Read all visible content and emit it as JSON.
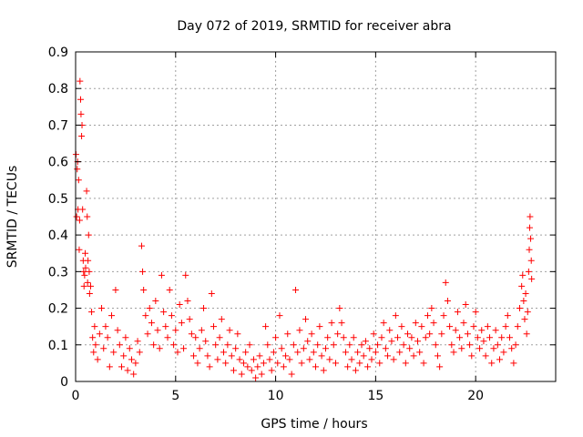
{
  "chart_data": {
    "type": "scatter",
    "title": "Day 072 of 2019, SRMTID for receiver abra",
    "xlabel": "GPS time / hours",
    "ylabel": "SRMTID / TECUs",
    "xlim": [
      0,
      24
    ],
    "ylim": [
      0,
      0.9
    ],
    "x_ticks": [
      0,
      5,
      10,
      15,
      20
    ],
    "x_tick_labels": [
      "0",
      "5",
      "10",
      "15",
      "20"
    ],
    "y_ticks": [
      0,
      0.1,
      0.2,
      0.3,
      0.4,
      0.5,
      0.6,
      0.7,
      0.8,
      0.9
    ],
    "y_tick_labels": [
      "0",
      "0.1",
      "0.2",
      "0.3",
      "0.4",
      "0.5",
      "0.6",
      "0.7",
      "0.8",
      "0.9"
    ],
    "grid": true,
    "marker": "+",
    "color": "#ff0000",
    "series": [
      {
        "name": "SRMTID",
        "points": [
          [
            0.02,
            0.62
          ],
          [
            0.05,
            0.45
          ],
          [
            0.08,
            0.58
          ],
          [
            0.1,
            0.6
          ],
          [
            0.12,
            0.47
          ],
          [
            0.15,
            0.55
          ],
          [
            0.18,
            0.36
          ],
          [
            0.2,
            0.44
          ],
          [
            0.22,
            0.82
          ],
          [
            0.25,
            0.77
          ],
          [
            0.27,
            0.73
          ],
          [
            0.3,
            0.67
          ],
          [
            0.32,
            0.7
          ],
          [
            0.35,
            0.47
          ],
          [
            0.38,
            0.33
          ],
          [
            0.4,
            0.3
          ],
          [
            0.42,
            0.26
          ],
          [
            0.45,
            0.29
          ],
          [
            0.48,
            0.35
          ],
          [
            0.5,
            0.31
          ],
          [
            0.55,
            0.52
          ],
          [
            0.58,
            0.45
          ],
          [
            0.6,
            0.27
          ],
          [
            0.62,
            0.33
          ],
          [
            0.65,
            0.4
          ],
          [
            0.68,
            0.3
          ],
          [
            0.7,
            0.24
          ],
          [
            0.75,
            0.26
          ],
          [
            0.8,
            0.19
          ],
          [
            0.85,
            0.12
          ],
          [
            0.9,
            0.08
          ],
          [
            0.95,
            0.15
          ],
          [
            1.0,
            0.1
          ],
          [
            1.1,
            0.06
          ],
          [
            1.2,
            0.13
          ],
          [
            1.3,
            0.2
          ],
          [
            1.4,
            0.09
          ],
          [
            1.5,
            0.15
          ],
          [
            1.6,
            0.12
          ],
          [
            1.7,
            0.04
          ],
          [
            1.8,
            0.18
          ],
          [
            1.9,
            0.08
          ],
          [
            2.0,
            0.25
          ],
          [
            2.1,
            0.14
          ],
          [
            2.2,
            0.1
          ],
          [
            2.3,
            0.04
          ],
          [
            2.4,
            0.07
          ],
          [
            2.5,
            0.12
          ],
          [
            2.6,
            0.03
          ],
          [
            2.7,
            0.09
          ],
          [
            2.8,
            0.06
          ],
          [
            2.9,
            0.02
          ],
          [
            3.0,
            0.05
          ],
          [
            3.1,
            0.11
          ],
          [
            3.2,
            0.08
          ],
          [
            3.3,
            0.37
          ],
          [
            3.35,
            0.3
          ],
          [
            3.4,
            0.25
          ],
          [
            3.5,
            0.18
          ],
          [
            3.6,
            0.13
          ],
          [
            3.7,
            0.2
          ],
          [
            3.8,
            0.16
          ],
          [
            3.9,
            0.1
          ],
          [
            4.0,
            0.22
          ],
          [
            4.1,
            0.14
          ],
          [
            4.2,
            0.09
          ],
          [
            4.3,
            0.29
          ],
          [
            4.4,
            0.19
          ],
          [
            4.5,
            0.15
          ],
          [
            4.6,
            0.12
          ],
          [
            4.7,
            0.25
          ],
          [
            4.8,
            0.18
          ],
          [
            4.9,
            0.1
          ],
          [
            5.0,
            0.14
          ],
          [
            5.1,
            0.08
          ],
          [
            5.2,
            0.21
          ],
          [
            5.3,
            0.16
          ],
          [
            5.4,
            0.09
          ],
          [
            5.5,
            0.29
          ],
          [
            5.6,
            0.22
          ],
          [
            5.7,
            0.17
          ],
          [
            5.8,
            0.13
          ],
          [
            5.9,
            0.07
          ],
          [
            6.0,
            0.12
          ],
          [
            6.1,
            0.05
          ],
          [
            6.2,
            0.09
          ],
          [
            6.3,
            0.14
          ],
          [
            6.4,
            0.2
          ],
          [
            6.5,
            0.11
          ],
          [
            6.6,
            0.07
          ],
          [
            6.7,
            0.04
          ],
          [
            6.8,
            0.24
          ],
          [
            6.9,
            0.15
          ],
          [
            7.0,
            0.1
          ],
          [
            7.1,
            0.06
          ],
          [
            7.2,
            0.12
          ],
          [
            7.3,
            0.17
          ],
          [
            7.4,
            0.08
          ],
          [
            7.5,
            0.05
          ],
          [
            7.6,
            0.1
          ],
          [
            7.7,
            0.14
          ],
          [
            7.8,
            0.07
          ],
          [
            7.9,
            0.03
          ],
          [
            8.0,
            0.09
          ],
          [
            8.1,
            0.13
          ],
          [
            8.2,
            0.06
          ],
          [
            8.3,
            0.02
          ],
          [
            8.4,
            0.05
          ],
          [
            8.5,
            0.08
          ],
          [
            8.6,
            0.04
          ],
          [
            8.7,
            0.1
          ],
          [
            8.8,
            0.03
          ],
          [
            8.9,
            0.06
          ],
          [
            9.0,
            0.01
          ],
          [
            9.1,
            0.04
          ],
          [
            9.2,
            0.07
          ],
          [
            9.3,
            0.02
          ],
          [
            9.4,
            0.05
          ],
          [
            9.5,
            0.15
          ],
          [
            9.6,
            0.1
          ],
          [
            9.7,
            0.06
          ],
          [
            9.8,
            0.03
          ],
          [
            9.9,
            0.08
          ],
          [
            10.0,
            0.12
          ],
          [
            10.1,
            0.05
          ],
          [
            10.2,
            0.18
          ],
          [
            10.3,
            0.09
          ],
          [
            10.4,
            0.04
          ],
          [
            10.5,
            0.07
          ],
          [
            10.6,
            0.13
          ],
          [
            10.7,
            0.06
          ],
          [
            10.8,
            0.02
          ],
          [
            10.9,
            0.1
          ],
          [
            11.0,
            0.25
          ],
          [
            11.1,
            0.08
          ],
          [
            11.2,
            0.14
          ],
          [
            11.3,
            0.05
          ],
          [
            11.4,
            0.09
          ],
          [
            11.5,
            0.17
          ],
          [
            11.6,
            0.11
          ],
          [
            11.7,
            0.06
          ],
          [
            11.8,
            0.13
          ],
          [
            11.9,
            0.08
          ],
          [
            12.0,
            0.04
          ],
          [
            12.1,
            0.1
          ],
          [
            12.2,
            0.15
          ],
          [
            12.3,
            0.07
          ],
          [
            12.4,
            0.03
          ],
          [
            12.5,
            0.09
          ],
          [
            12.6,
            0.12
          ],
          [
            12.7,
            0.06
          ],
          [
            12.8,
            0.16
          ],
          [
            12.9,
            0.1
          ],
          [
            13.0,
            0.05
          ],
          [
            13.1,
            0.13
          ],
          [
            13.2,
            0.2
          ],
          [
            13.3,
            0.16
          ],
          [
            13.4,
            0.12
          ],
          [
            13.5,
            0.08
          ],
          [
            13.6,
            0.04
          ],
          [
            13.7,
            0.1
          ],
          [
            13.8,
            0.06
          ],
          [
            13.9,
            0.12
          ],
          [
            14.0,
            0.03
          ],
          [
            14.1,
            0.08
          ],
          [
            14.2,
            0.05
          ],
          [
            14.3,
            0.1
          ],
          [
            14.4,
            0.07
          ],
          [
            14.5,
            0.11
          ],
          [
            14.6,
            0.04
          ],
          [
            14.7,
            0.09
          ],
          [
            14.8,
            0.06
          ],
          [
            14.9,
            0.13
          ],
          [
            15.0,
            0.08
          ],
          [
            15.1,
            0.1
          ],
          [
            15.2,
            0.05
          ],
          [
            15.3,
            0.12
          ],
          [
            15.4,
            0.16
          ],
          [
            15.5,
            0.09
          ],
          [
            15.6,
            0.07
          ],
          [
            15.7,
            0.14
          ],
          [
            15.8,
            0.11
          ],
          [
            15.9,
            0.06
          ],
          [
            16.0,
            0.18
          ],
          [
            16.1,
            0.12
          ],
          [
            16.2,
            0.08
          ],
          [
            16.3,
            0.15
          ],
          [
            16.4,
            0.1
          ],
          [
            16.5,
            0.05
          ],
          [
            16.6,
            0.13
          ],
          [
            16.7,
            0.09
          ],
          [
            16.8,
            0.12
          ],
          [
            16.9,
            0.07
          ],
          [
            17.0,
            0.16
          ],
          [
            17.1,
            0.11
          ],
          [
            17.2,
            0.08
          ],
          [
            17.3,
            0.15
          ],
          [
            17.4,
            0.05
          ],
          [
            17.5,
            0.12
          ],
          [
            17.6,
            0.18
          ],
          [
            17.7,
            0.13
          ],
          [
            17.8,
            0.2
          ],
          [
            17.9,
            0.16
          ],
          [
            18.0,
            0.1
          ],
          [
            18.1,
            0.07
          ],
          [
            18.2,
            0.04
          ],
          [
            18.3,
            0.13
          ],
          [
            18.4,
            0.18
          ],
          [
            18.5,
            0.27
          ],
          [
            18.6,
            0.22
          ],
          [
            18.7,
            0.15
          ],
          [
            18.8,
            0.1
          ],
          [
            18.9,
            0.08
          ],
          [
            19.0,
            0.14
          ],
          [
            19.1,
            0.19
          ],
          [
            19.2,
            0.12
          ],
          [
            19.3,
            0.09
          ],
          [
            19.4,
            0.16
          ],
          [
            19.5,
            0.21
          ],
          [
            19.6,
            0.13
          ],
          [
            19.7,
            0.1
          ],
          [
            19.8,
            0.07
          ],
          [
            19.9,
            0.15
          ],
          [
            20.0,
            0.19
          ],
          [
            20.1,
            0.12
          ],
          [
            20.2,
            0.09
          ],
          [
            20.3,
            0.14
          ],
          [
            20.4,
            0.11
          ],
          [
            20.5,
            0.07
          ],
          [
            20.6,
            0.15
          ],
          [
            20.7,
            0.12
          ],
          [
            20.8,
            0.05
          ],
          [
            20.9,
            0.09
          ],
          [
            21.0,
            0.14
          ],
          [
            21.1,
            0.1
          ],
          [
            21.2,
            0.06
          ],
          [
            21.3,
            0.12
          ],
          [
            21.4,
            0.08
          ],
          [
            21.5,
            0.15
          ],
          [
            21.6,
            0.18
          ],
          [
            21.7,
            0.12
          ],
          [
            21.8,
            0.09
          ],
          [
            21.9,
            0.05
          ],
          [
            22.0,
            0.1
          ],
          [
            22.1,
            0.15
          ],
          [
            22.2,
            0.2
          ],
          [
            22.3,
            0.26
          ],
          [
            22.35,
            0.29
          ],
          [
            22.4,
            0.22
          ],
          [
            22.45,
            0.17
          ],
          [
            22.5,
            0.24
          ],
          [
            22.55,
            0.13
          ],
          [
            22.6,
            0.19
          ],
          [
            22.65,
            0.3
          ],
          [
            22.68,
            0.36
          ],
          [
            22.7,
            0.42
          ],
          [
            22.72,
            0.45
          ],
          [
            22.75,
            0.39
          ],
          [
            22.78,
            0.33
          ],
          [
            22.8,
            0.28
          ]
        ]
      }
    ]
  }
}
